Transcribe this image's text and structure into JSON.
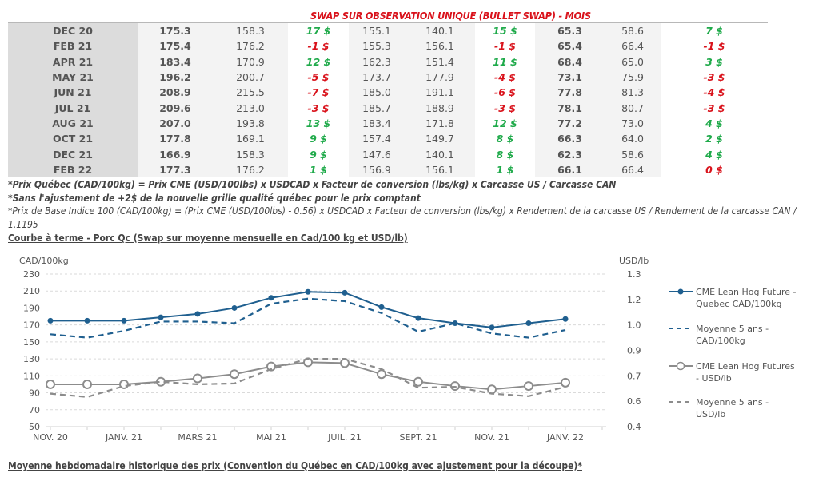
{
  "table": {
    "title": "SWAP SUR OBSERVATION UNIQUE (BULLET SWAP) - MOIS",
    "rows": [
      {
        "month": "DEC 20",
        "v1": "175.3",
        "v2": "158.3",
        "d1": "17 $",
        "s1": "pos",
        "v3": "155.1",
        "v4": "140.1",
        "d2": "15 $",
        "s2": "pos",
        "v5": "65.3",
        "v6": "58.6",
        "d3": "7 $",
        "s3": "pos"
      },
      {
        "month": "FEB 21",
        "v1": "175.4",
        "v2": "176.2",
        "d1": "-1 $",
        "s1": "neg",
        "v3": "155.3",
        "v4": "156.1",
        "d2": "-1 $",
        "s2": "neg",
        "v5": "65.4",
        "v6": "66.4",
        "d3": "-1 $",
        "s3": "neg"
      },
      {
        "month": "APR 21",
        "v1": "183.4",
        "v2": "170.9",
        "d1": "12 $",
        "s1": "pos",
        "v3": "162.3",
        "v4": "151.4",
        "d2": "11 $",
        "s2": "pos",
        "v5": "68.4",
        "v6": "65.0",
        "d3": "3 $",
        "s3": "pos"
      },
      {
        "month": "MAY 21",
        "v1": "196.2",
        "v2": "200.7",
        "d1": "-5 $",
        "s1": "neg",
        "v3": "173.7",
        "v4": "177.9",
        "d2": "-4 $",
        "s2": "neg",
        "v5": "73.1",
        "v6": "75.9",
        "d3": "-3 $",
        "s3": "neg"
      },
      {
        "month": "JUN 21",
        "v1": "208.9",
        "v2": "215.5",
        "d1": "-7 $",
        "s1": "neg",
        "v3": "185.0",
        "v4": "191.1",
        "d2": "-6 $",
        "s2": "neg",
        "v5": "77.8",
        "v6": "81.3",
        "d3": "-4 $",
        "s3": "neg"
      },
      {
        "month": "JUL 21",
        "v1": "209.6",
        "v2": "213.0",
        "d1": "-3 $",
        "s1": "neg",
        "v3": "185.7",
        "v4": "188.9",
        "d2": "-3 $",
        "s2": "neg",
        "v5": "78.1",
        "v6": "80.7",
        "d3": "-3 $",
        "s3": "neg"
      },
      {
        "month": "AUG 21",
        "v1": "207.0",
        "v2": "193.8",
        "d1": "13 $",
        "s1": "pos",
        "v3": "183.4",
        "v4": "171.8",
        "d2": "12 $",
        "s2": "pos",
        "v5": "77.2",
        "v6": "73.0",
        "d3": "4 $",
        "s3": "pos"
      },
      {
        "month": "OCT 21",
        "v1": "177.8",
        "v2": "169.1",
        "d1": "9 $",
        "s1": "pos",
        "v3": "157.4",
        "v4": "149.7",
        "d2": "8 $",
        "s2": "pos",
        "v5": "66.3",
        "v6": "64.0",
        "d3": "2 $",
        "s3": "pos"
      },
      {
        "month": "DEC 21",
        "v1": "166.9",
        "v2": "158.3",
        "d1": "9 $",
        "s1": "pos",
        "v3": "147.6",
        "v4": "140.1",
        "d2": "8 $",
        "s2": "pos",
        "v5": "62.3",
        "v6": "58.6",
        "d3": "4 $",
        "s3": "pos"
      },
      {
        "month": "FEB 22",
        "v1": "177.3",
        "v2": "176.2",
        "d1": "1 $",
        "s1": "pos",
        "v3": "156.9",
        "v4": "156.1",
        "d2": "1 $",
        "s2": "pos",
        "v5": "66.1",
        "v6": "66.4",
        "d3": "0 $",
        "s3": "neg"
      }
    ]
  },
  "notes": {
    "n1": "*Prix Québec (CAD/100kg) = Prix CME (USD/100lbs) x USDCAD x Facteur de conversion (lbs/kg) x Carcasse US / Carcasse CAN",
    "n2": "*Sans l'ajustement de +2$ de la nouvelle grille qualité québec pour le prix comptant",
    "n3": "*Prix de Base Indice 100 (CAD/100kg) = (Prix CME (USD/100lbs) - 0.56) x USDCAD x Facteur de conversion (lbs/kg) x Rendement de la carcasse US / Rendement de la carcasse CAN / 1.1195"
  },
  "section_chart_title": "Courbe à terme - Porc Qc (Swap sur moyenne mensuelle en Cad/100 kg et USD/lb)",
  "section_bottom_title": "Moyenne hebdomadaire historique des prix (Convention du Québec en CAD/100kg avec ajustement pour la découpe)*",
  "colors": {
    "blue": "#1f5f8f",
    "gray": "#8c8c8c",
    "pos": "#1faa4a",
    "neg": "#d9121b"
  },
  "chart_data": {
    "type": "line",
    "title": "Courbe à terme - Porc Qc",
    "ylabel_left": "CAD/100kg",
    "ylabel_right": "USD/lb",
    "ylim_left": [
      50,
      230
    ],
    "ylim_right": [
      0.4,
      1.3
    ],
    "yticks_left": [
      "230",
      "210",
      "190",
      "170",
      "150",
      "130",
      "110",
      "90",
      "70",
      "50"
    ],
    "yticks_right": [
      "1.3",
      "1.2",
      "1.0",
      "0.9",
      "0.7",
      "0.6",
      "0.4"
    ],
    "x": [
      "NOV. 20",
      "DÉC. 20",
      "JANV. 21",
      "FÉVR. 21",
      "MARS 21",
      "AVR. 21",
      "MAI 21",
      "JUIN 21",
      "JUIL. 21",
      "AOÛT 21",
      "SEPT. 21",
      "OCT. 21",
      "NOV. 21",
      "DÉC. 21",
      "JANV. 22"
    ],
    "xtick_labels": [
      "NOV. 20",
      "",
      "JANV. 21",
      "",
      "MARS 21",
      "",
      "MAI 21",
      "",
      "JUIL. 21",
      "",
      "SEPT. 21",
      "",
      "NOV. 21",
      "",
      "JANV. 22"
    ],
    "grid": true,
    "legend_position": "right",
    "series": [
      {
        "name": "CME Lean Hog Future - Quebec CAD/100kg",
        "axis": "left",
        "style": "solid-dot",
        "color": "#1f5f8f",
        "values": [
          175,
          175,
          175,
          179,
          183,
          190,
          202,
          209,
          208,
          191,
          178,
          172,
          167,
          172,
          177
        ]
      },
      {
        "name": "Moyenne 5 ans - CAD/100kg",
        "axis": "left",
        "style": "dashed",
        "color": "#1f5f8f",
        "values": [
          159,
          155,
          163,
          174,
          174,
          172,
          195,
          201,
          198,
          184,
          162,
          172,
          160,
          155,
          164
        ]
      },
      {
        "name": "CME Lean Hog Futures - USD/lb",
        "axis": "right",
        "style": "solid-circle",
        "color": "#8c8c8c",
        "values": [
          0.65,
          0.65,
          0.65,
          0.665,
          0.685,
          0.71,
          0.755,
          0.78,
          0.775,
          0.71,
          0.665,
          0.64,
          0.62,
          0.64,
          0.66
        ]
      },
      {
        "name": "Moyenne 5 ans - USD/lb",
        "axis": "right",
        "style": "dashed",
        "color": "#8c8c8c",
        "values": [
          0.595,
          0.575,
          0.64,
          0.665,
          0.65,
          0.655,
          0.74,
          0.8,
          0.8,
          0.74,
          0.63,
          0.635,
          0.595,
          0.58,
          0.635
        ]
      }
    ],
    "legend": [
      {
        "line1": "CME Lean Hog Future -",
        "line2": "Quebec CAD/100kg"
      },
      {
        "line1": "Moyenne 5 ans -",
        "line2": "CAD/100kg"
      },
      {
        "line1": "CME Lean Hog Futures",
        "line2": "- USD/lb"
      },
      {
        "line1": "Moyenne 5 ans -",
        "line2": "USD/lb"
      }
    ]
  }
}
